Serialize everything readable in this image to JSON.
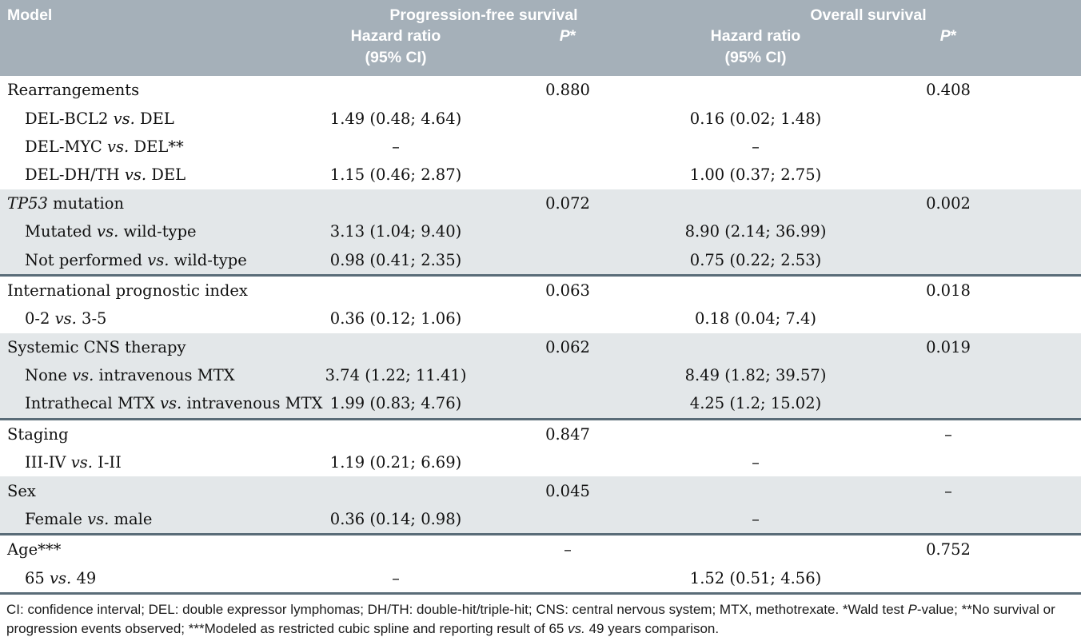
{
  "colors": {
    "header_bg": "#a5b0b9",
    "shaded_row_bg": "#e3e7e9",
    "section_border": "#5a6c78",
    "header_text": "#ffffff"
  },
  "header": {
    "model_label": "Model",
    "pfs_group": "Progression-free survival",
    "os_group": "Overall survival",
    "hazard_ratio_line1": "Hazard ratio",
    "hazard_ratio_line2": "(95% CI)",
    "p_label_parts": [
      {
        "t": "P",
        "i": true
      },
      {
        "t": "*"
      }
    ]
  },
  "rows": [
    {
      "label_parts": [
        {
          "t": "Rearrangements"
        }
      ],
      "sub": false,
      "shaded": false,
      "end": false,
      "pfs_hr": "",
      "pfs_p": "0.880",
      "os_hr": "",
      "os_p": "0.408"
    },
    {
      "label_parts": [
        {
          "t": "DEL-BCL2 "
        },
        {
          "t": "vs.",
          "i": true
        },
        {
          "t": " DEL"
        }
      ],
      "sub": true,
      "shaded": false,
      "end": false,
      "pfs_hr": "1.49 (0.48; 4.64)",
      "pfs_p": "",
      "os_hr": "0.16 (0.02; 1.48)",
      "os_p": ""
    },
    {
      "label_parts": [
        {
          "t": "DEL-MYC "
        },
        {
          "t": "vs.",
          "i": true
        },
        {
          "t": " DEL**"
        }
      ],
      "sub": true,
      "shaded": false,
      "end": false,
      "pfs_hr": "–",
      "pfs_p": "",
      "os_hr": "–",
      "os_p": ""
    },
    {
      "label_parts": [
        {
          "t": "DEL-DH/TH "
        },
        {
          "t": "vs.",
          "i": true
        },
        {
          "t": " DEL"
        }
      ],
      "sub": true,
      "shaded": false,
      "end": false,
      "pfs_hr": "1.15 (0.46; 2.87)",
      "pfs_p": "",
      "os_hr": "1.00 (0.37; 2.75)",
      "os_p": ""
    },
    {
      "label_parts": [
        {
          "t": "TP53",
          "i": true
        },
        {
          "t": " mutation"
        }
      ],
      "sub": false,
      "shaded": true,
      "end": false,
      "pfs_hr": "",
      "pfs_p": "0.072",
      "os_hr": "",
      "os_p": "0.002"
    },
    {
      "label_parts": [
        {
          "t": "Mutated "
        },
        {
          "t": "vs.",
          "i": true
        },
        {
          "t": " wild-type"
        }
      ],
      "sub": true,
      "shaded": true,
      "end": false,
      "pfs_hr": "3.13 (1.04; 9.40)",
      "pfs_p": "",
      "os_hr": "8.90 (2.14; 36.99)",
      "os_p": ""
    },
    {
      "label_parts": [
        {
          "t": "Not performed "
        },
        {
          "t": "vs.",
          "i": true
        },
        {
          "t": " wild-type"
        }
      ],
      "sub": true,
      "shaded": true,
      "end": true,
      "pfs_hr": "0.98 (0.41; 2.35)",
      "pfs_p": "",
      "os_hr": "0.75 (0.22; 2.53)",
      "os_p": ""
    },
    {
      "label_parts": [
        {
          "t": "International prognostic index"
        }
      ],
      "sub": false,
      "shaded": false,
      "end": false,
      "pfs_hr": "",
      "pfs_p": "0.063",
      "os_hr": "",
      "os_p": "0.018"
    },
    {
      "label_parts": [
        {
          "t": "0-2 "
        },
        {
          "t": "vs.",
          "i": true
        },
        {
          "t": " 3-5"
        }
      ],
      "sub": true,
      "shaded": false,
      "end": false,
      "pfs_hr": "0.36 (0.12; 1.06)",
      "pfs_p": "",
      "os_hr": "0.18 (0.04; 7.4)",
      "os_p": ""
    },
    {
      "label_parts": [
        {
          "t": "Systemic CNS therapy"
        }
      ],
      "sub": false,
      "shaded": true,
      "end": false,
      "pfs_hr": "",
      "pfs_p": "0.062",
      "os_hr": "",
      "os_p": "0.019"
    },
    {
      "label_parts": [
        {
          "t": "None "
        },
        {
          "t": "vs.",
          "i": true
        },
        {
          "t": " intravenous MTX"
        }
      ],
      "sub": true,
      "shaded": true,
      "end": false,
      "pfs_hr": "3.74 (1.22; 11.41)",
      "pfs_p": "",
      "os_hr": "8.49 (1.82; 39.57)",
      "os_p": ""
    },
    {
      "label_parts": [
        {
          "t": "Intrathecal MTX "
        },
        {
          "t": "vs.",
          "i": true
        },
        {
          "t": " intravenous MTX"
        }
      ],
      "sub": true,
      "shaded": true,
      "end": true,
      "pfs_hr": "1.99 (0.83; 4.76)",
      "pfs_p": "",
      "os_hr": "4.25 (1.2; 15.02)",
      "os_p": ""
    },
    {
      "label_parts": [
        {
          "t": "Staging"
        }
      ],
      "sub": false,
      "shaded": false,
      "end": false,
      "pfs_hr": "",
      "pfs_p": "0.847",
      "os_hr": "",
      "os_p": "–"
    },
    {
      "label_parts": [
        {
          "t": "III-IV "
        },
        {
          "t": "vs.",
          "i": true
        },
        {
          "t": " I-II"
        }
      ],
      "sub": true,
      "shaded": false,
      "end": false,
      "pfs_hr": "1.19 (0.21; 6.69)",
      "pfs_p": "",
      "os_hr": "–",
      "os_p": ""
    },
    {
      "label_parts": [
        {
          "t": "Sex"
        }
      ],
      "sub": false,
      "shaded": true,
      "end": false,
      "pfs_hr": "",
      "pfs_p": "0.045",
      "os_hr": "",
      "os_p": "–"
    },
    {
      "label_parts": [
        {
          "t": "Female "
        },
        {
          "t": "vs.",
          "i": true
        },
        {
          "t": " male"
        }
      ],
      "sub": true,
      "shaded": true,
      "end": true,
      "pfs_hr": "0.36 (0.14; 0.98)",
      "pfs_p": "",
      "os_hr": "–",
      "os_p": ""
    },
    {
      "label_parts": [
        {
          "t": "Age***"
        }
      ],
      "sub": false,
      "shaded": false,
      "end": false,
      "pfs_hr": "",
      "pfs_p": "–",
      "os_hr": "",
      "os_p": "0.752"
    },
    {
      "label_parts": [
        {
          "t": "65 "
        },
        {
          "t": "vs.",
          "i": true
        },
        {
          "t": " 49"
        }
      ],
      "sub": true,
      "shaded": false,
      "end": true,
      "pfs_hr": "–",
      "pfs_p": "",
      "os_hr": "1.52 (0.51; 4.56)",
      "os_p": ""
    }
  ],
  "footnote_parts": [
    {
      "t": "CI: confidence interval; DEL: double expressor lymphomas; DH/TH: double-hit/triple-hit; CNS: central nervous system; MTX, methotrexate. *Wald test "
    },
    {
      "t": "P",
      "i": true
    },
    {
      "t": "-value; **No survival or progression events observed; ***Modeled as restricted cubic spline and reporting result of 65 "
    },
    {
      "t": "vs.",
      "i": true
    },
    {
      "t": " 49 years comparison."
    }
  ]
}
